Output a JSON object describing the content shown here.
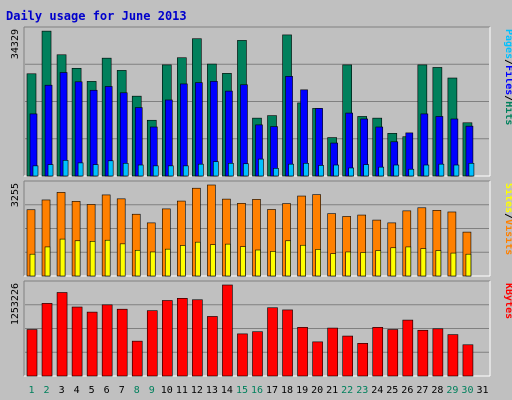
{
  "colors": {
    "page_bg": "#c0c0c0",
    "plot_bg": "#c0c0c0",
    "grid": "#808080",
    "title": "#0000cc",
    "hits": "#00805c",
    "files": "#0000ff",
    "pages": "#00c0ff",
    "visits": "#ff8000",
    "sites": "#ffff00",
    "kbytes": "#ff0000",
    "weekend_day": "#00805c",
    "weekday": "#000000",
    "axis_text": "#000000"
  },
  "chart_data": {
    "title": "Daily usage for June 2013",
    "type": "bar",
    "x": {
      "days": [
        "1",
        "2",
        "3",
        "4",
        "5",
        "6",
        "7",
        "8",
        "9",
        "10",
        "11",
        "12",
        "13",
        "14",
        "15",
        "16",
        "17",
        "18",
        "19",
        "20",
        "21",
        "22",
        "23",
        "24",
        "25",
        "26",
        "27",
        "28",
        "29",
        "30",
        "31"
      ],
      "weekend_days": [
        "1",
        "2",
        "8",
        "9",
        "15",
        "16",
        "22",
        "23",
        "29",
        "30"
      ]
    },
    "panels": [
      {
        "name": "hits",
        "ymax_label": "34329",
        "ymax": 34329,
        "legend": [
          "Pages",
          "/",
          "Files",
          "/",
          "Hits"
        ],
        "series": [
          {
            "name": "Hits",
            "values": [
              24200,
              34300,
              28700,
              25500,
              22400,
              27900,
              25000,
              18900,
              13200,
              26300,
              28000,
              32500,
              26500,
              24300,
              32100,
              13700,
              14300,
              33400,
              17300,
              16000,
              9100,
              26300,
              14100,
              13700,
              10100,
              9300,
              26300,
              25700,
              23200,
              12600,
              null
            ]
          },
          {
            "name": "Files",
            "values": [
              14700,
              21500,
              24500,
              22300,
              20300,
              21200,
              19700,
              16200,
              11600,
              18000,
              21800,
              22100,
              22400,
              20100,
              21600,
              12100,
              11700,
              23600,
              20400,
              16000,
              7800,
              14900,
              13500,
              11600,
              8100,
              10200,
              14700,
              14100,
              13500,
              11800,
              null
            ]
          },
          {
            "name": "Pages",
            "values": [
              2400,
              2700,
              3700,
              3100,
              2700,
              3600,
              3000,
              2600,
              2400,
              2400,
              2400,
              2800,
              3400,
              3000,
              2900,
              4000,
              1800,
              2800,
              3000,
              2500,
              2600,
              1900,
              2700,
              2100,
              2600,
              1600,
              2600,
              2800,
              2600,
              3000,
              null
            ]
          }
        ]
      },
      {
        "name": "visits",
        "ymax_label": "3255",
        "ymax": 3255,
        "legend": [
          "Sites",
          "/",
          "Visits"
        ],
        "series": [
          {
            "name": "Visits",
            "values": [
              2370,
              2720,
              2990,
              2670,
              2560,
              2900,
              2760,
              2210,
              1900,
              2400,
              2680,
              3140,
              3255,
              2750,
              2600,
              2740,
              2380,
              2590,
              2860,
              2910,
              2230,
              2130,
              2180,
              2000,
              1900,
              2330,
              2440,
              2350,
              2290,
              1570,
              null
            ]
          },
          {
            "name": "Sites",
            "values": [
              780,
              1040,
              1320,
              1260,
              1240,
              1280,
              1150,
              920,
              860,
              960,
              1090,
              1210,
              1120,
              1140,
              1050,
              930,
              880,
              1260,
              1100,
              950,
              800,
              860,
              840,
              910,
              1010,
              1040,
              980,
              910,
              820,
              780,
              null
            ]
          }
        ]
      },
      {
        "name": "kbytes",
        "ymax_label": "1253226",
        "ymax": 1253226,
        "legend": [
          "KBytes"
        ],
        "series": [
          {
            "name": "KBytes",
            "values": [
              640000,
              1000000,
              1150000,
              950000,
              880000,
              980000,
              920000,
              480000,
              900000,
              1040000,
              1070000,
              1050000,
              820000,
              1253226,
              580000,
              610000,
              940000,
              910000,
              670000,
              470000,
              660000,
              550000,
              450000,
              670000,
              640000,
              770000,
              630000,
              650000,
              570000,
              430000,
              null
            ]
          }
        ]
      }
    ]
  }
}
